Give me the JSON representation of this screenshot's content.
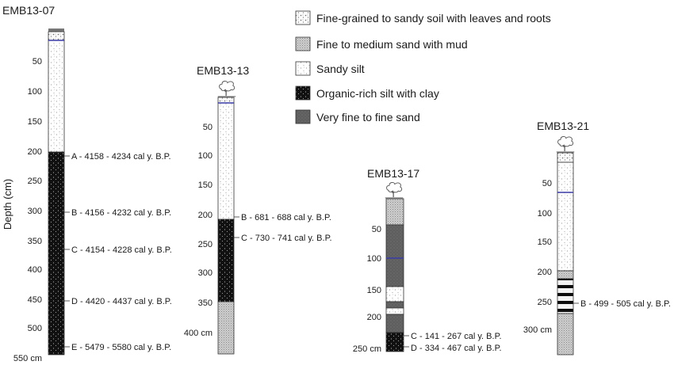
{
  "y_axis_label": "Depth (cm)",
  "legend": [
    {
      "id": "soil",
      "label": "Fine-grained to sandy soil with leaves and roots"
    },
    {
      "id": "sandmud",
      "label": "Fine to medium sand with mud"
    },
    {
      "id": "sandysilt",
      "label": "Sandy silt"
    },
    {
      "id": "organic",
      "label": "Organic-rich silt with clay"
    },
    {
      "id": "finesand",
      "label": "Very fine to fine sand"
    }
  ],
  "cores": [
    {
      "name": "EMB13-07",
      "ticks": [
        "50",
        "100",
        "150",
        "200",
        "250",
        "300",
        "350",
        "400",
        "450",
        "500",
        "550 cm"
      ],
      "samples": [
        {
          "text": "A - 4158 - 4234 cal y. B.P."
        },
        {
          "text": "B - 4156 - 4232 cal y. B.P."
        },
        {
          "text": "C - 4154 - 4228 cal y. B.P."
        },
        {
          "text": "D - 4420 - 4437 cal y. B.P."
        },
        {
          "text": "E - 5479 - 5580 cal y. B.P."
        }
      ]
    },
    {
      "name": "EMB13-13",
      "ticks": [
        "50",
        "100",
        "150",
        "200",
        "250",
        "300",
        "350",
        "400 cm"
      ],
      "samples": [
        {
          "text": "B - 681 - 688 cal y. B.P."
        },
        {
          "text": "C - 730 - 741 cal y. B.P."
        }
      ]
    },
    {
      "name": "EMB13-17",
      "ticks": [
        "50",
        "100",
        "150",
        "200",
        "250 cm"
      ],
      "samples": [
        {
          "text": "C - 141 - 267 cal y. B.P."
        },
        {
          "text": "D - 334 - 467 cal y. B.P."
        }
      ]
    },
    {
      "name": "EMB13-21",
      "ticks": [
        "50",
        "100",
        "150",
        "200",
        "250",
        "300 cm"
      ],
      "samples": [
        {
          "text": "B - 499 - 505 cal y. B.P."
        }
      ]
    }
  ]
}
